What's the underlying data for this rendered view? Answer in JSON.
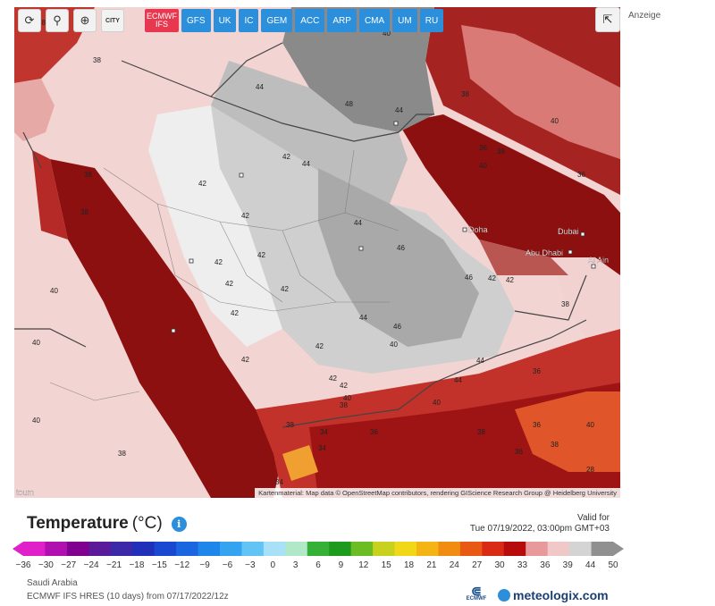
{
  "toolbar": {
    "buttons": [
      {
        "name": "refresh-icon",
        "glyph": "⟳"
      },
      {
        "name": "location-pin-icon",
        "glyph": "⚲"
      },
      {
        "name": "zoom-in-icon",
        "glyph": "⊕"
      }
    ],
    "city_toggle": "CITY"
  },
  "model_tabs": {
    "active": [
      "ECMWF",
      "IFS"
    ],
    "others": [
      "GFS",
      "UK",
      "IC",
      "GEM",
      "ACC",
      "ARP",
      "CMA",
      "UM",
      "RU"
    ]
  },
  "ad_label": "Anzeige",
  "map": {
    "attribution": "Kartenmaterial: Map data © OpenStreetMap contributors, rendering GIScience Research Group @ Heidelberg University",
    "cities": [
      "Doha",
      "Dubai",
      "Abu Dhabi",
      "Al Ain",
      "toum"
    ],
    "temperature_labels": [
      "38",
      "38",
      "38",
      "40",
      "40",
      "40",
      "38",
      "38",
      "42",
      "42",
      "44",
      "48",
      "44",
      "44",
      "42",
      "42",
      "42",
      "42",
      "44",
      "46",
      "44",
      "46",
      "42",
      "42",
      "42",
      "42",
      "42",
      "44",
      "40",
      "42",
      "40",
      "38",
      "38",
      "34",
      "36",
      "40",
      "36",
      "38",
      "38",
      "42",
      "36",
      "40",
      "40",
      "38",
      "36",
      "40",
      "42",
      "46",
      "36",
      "38",
      "36",
      "38",
      "40",
      "28",
      "34",
      "34",
      "44"
    ]
  },
  "legend": {
    "title": "Temperature",
    "unit": "(°C)",
    "valid_for_label": "Valid for",
    "valid_for_time": "Tue 07/19/2022, 03:00pm GMT+03",
    "ticks": [
      "−36",
      "−30",
      "−27",
      "−24",
      "−21",
      "−18",
      "−15",
      "−12",
      "−9",
      "−6",
      "−3",
      "0",
      "3",
      "6",
      "9",
      "12",
      "15",
      "18",
      "21",
      "24",
      "27",
      "30",
      "33",
      "36",
      "39",
      "44",
      "50"
    ],
    "colors": [
      "#e020c8",
      "#b010b0",
      "#800090",
      "#5a1a9a",
      "#3a2aa8",
      "#2030b8",
      "#1a48d0",
      "#1a66e0",
      "#1e86ea",
      "#34a4f0",
      "#62c4f4",
      "#a8e0f8",
      "#b0e8c8",
      "#36b036",
      "#1e9a1e",
      "#6cbc24",
      "#c8d21e",
      "#f0d818",
      "#f4b414",
      "#f08c10",
      "#e85a14",
      "#d82a14",
      "#b80c0c",
      "#e89a9a",
      "#f0c8c8",
      "#d4d4d4",
      "#909090"
    ]
  },
  "footer": {
    "region": "Saudi Arabia",
    "run": "ECMWF IFS HRES (10 days) from 07/17/2022/12z",
    "ecmwf_logo_text": "ECMWF",
    "brand": "meteologix.com"
  }
}
